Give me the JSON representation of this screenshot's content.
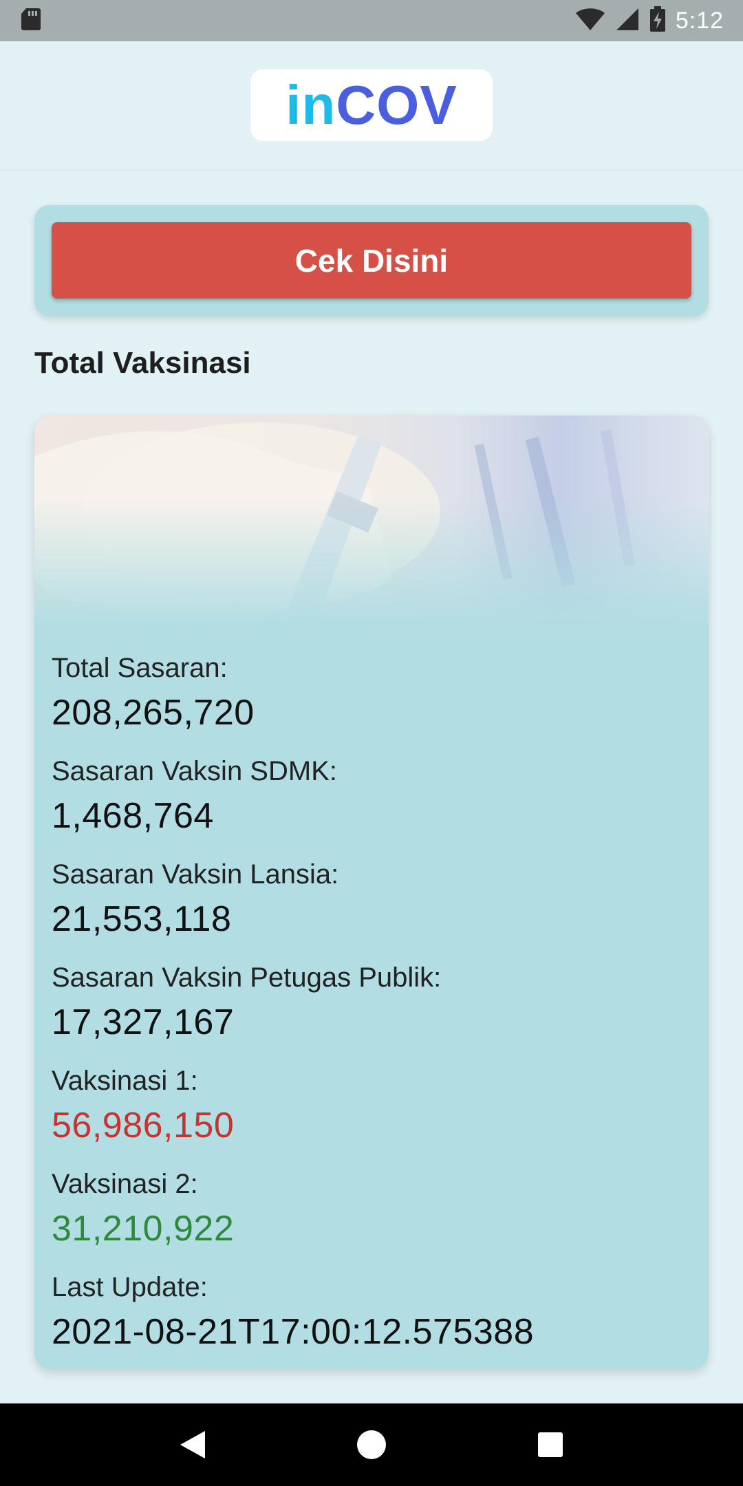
{
  "status_bar": {
    "time": "5:12",
    "icons": [
      "sd-card-icon",
      "wifi-icon",
      "signal-icon",
      "battery-charging-icon"
    ]
  },
  "header": {
    "logo_part1": "in",
    "logo_part2": "COV",
    "colors": {
      "logo_in": "#1bbde8",
      "logo_cov": "#4a5fe0"
    }
  },
  "cta": {
    "label": "Cek Disini",
    "color": "#d55047"
  },
  "section": {
    "title": "Total Vaksinasi"
  },
  "stats": [
    {
      "label": "Total Sasaran:",
      "value": "208,265,720"
    },
    {
      "label": "Sasaran Vaksin SDMK:",
      "value": "1,468,764"
    },
    {
      "label": "Sasaran Vaksin Lansia:",
      "value": "21,553,118"
    },
    {
      "label": "Sasaran Vaksin Petugas Publik:",
      "value": "17,327,167"
    },
    {
      "label": "Vaksinasi 1:",
      "value": "56,986,150",
      "color": "#c8322f"
    },
    {
      "label": "Vaksinasi 2:",
      "value": "31,210,922",
      "color": "#2e8a3b"
    },
    {
      "label": "Last Update:",
      "value": "2021-08-21T17:00:12.575388"
    }
  ],
  "nav": {
    "icons": [
      "back-icon",
      "home-icon",
      "recents-icon"
    ]
  }
}
